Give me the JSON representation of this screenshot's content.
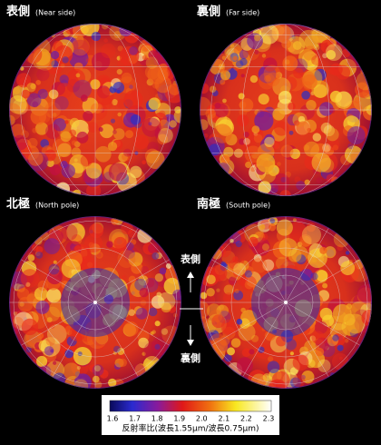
{
  "panels": [
    {
      "title": "表側",
      "subtitle": "(Near side)"
    },
    {
      "title": "裏側",
      "subtitle": "(Far side)"
    },
    {
      "title": "北極",
      "subtitle": "(North pole)"
    },
    {
      "title": "南極",
      "subtitle": "(South pole)"
    }
  ],
  "arrows": {
    "up": "表側",
    "down": "裏側"
  },
  "colorbar": {
    "ticks": [
      "1.6",
      "1.7",
      "1.8",
      "1.9",
      "2.0",
      "2.1",
      "2.2",
      "2.3"
    ],
    "label": "反射率比(波長1.55μm/波長0.75μm)"
  }
}
